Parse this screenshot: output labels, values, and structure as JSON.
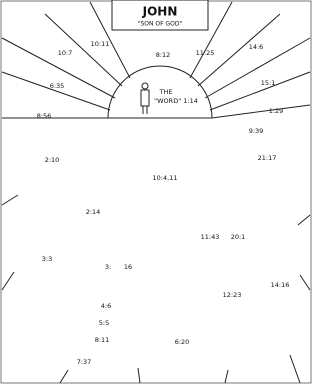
{
  "header": {
    "title": "JOHN",
    "subtitle": "\"SON OF GOD\""
  },
  "center": {
    "line1": "THE",
    "line2": "\"WORD\" 1:14"
  },
  "labels": [
    "10:11",
    "8:12",
    "11:25",
    "14:6",
    "10:7",
    "6:35",
    "15:1",
    "8:56",
    "1:29",
    "9:39",
    "2:10",
    "21:17",
    "10:4,11",
    "2:14",
    "11:43",
    "20:1",
    "3:3",
    "3:",
    "16",
    "14:16",
    "12:23",
    "4:6",
    "5:5",
    "8:11",
    "6:20",
    "7:37"
  ]
}
